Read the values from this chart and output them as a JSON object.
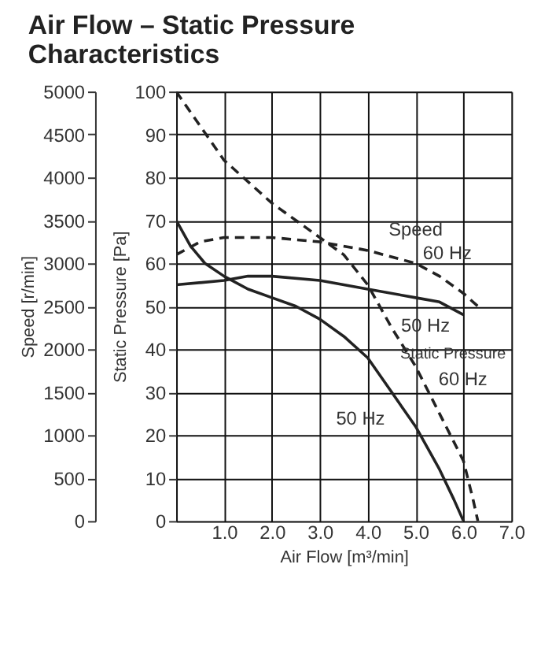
{
  "chart_data": {
    "type": "line",
    "title": "Air Flow – Static Pressure Characteristics",
    "xlabel": "Air Flow [m³/min]",
    "ylabel": "Static Pressure [Pa]",
    "y2label": "Speed [r/min]",
    "xlim": [
      0,
      7
    ],
    "xticks": [
      {
        "value": 0,
        "label": null
      },
      {
        "value": 1,
        "label": "1.0"
      },
      {
        "value": 2,
        "label": "2.0"
      },
      {
        "value": 3,
        "label": "3.0"
      },
      {
        "value": 4,
        "label": "4.0"
      },
      {
        "value": 5,
        "label": "5.0"
      },
      {
        "value": 6,
        "label": "6.0"
      },
      {
        "value": 7,
        "label": "7.0"
      }
    ],
    "ylim": [
      0,
      100
    ],
    "yticks": [
      0,
      10,
      20,
      30,
      40,
      50,
      60,
      70,
      80,
      90,
      100
    ],
    "y2lim": [
      0,
      5000
    ],
    "y2ticks": [
      0,
      500,
      1000,
      1500,
      2000,
      2500,
      3000,
      3500,
      4000,
      4500,
      5000
    ],
    "grid": true,
    "series": [
      {
        "color": "#222222",
        "line_style": "dashed",
        "axis": "y2",
        "x": [
          0,
          0.5,
          1,
          2,
          3,
          4,
          5,
          5.5,
          6,
          6.3
        ],
        "values": [
          3100,
          3250,
          3300,
          3300,
          3250,
          3150,
          3000,
          2850,
          2650,
          2500
        ]
      },
      {
        "color": "#222222",
        "line_style": "solid",
        "axis": "y2",
        "x": [
          0,
          1,
          1.5,
          2,
          3,
          4,
          5,
          5.5,
          6
        ],
        "values": [
          2750,
          2800,
          2850,
          2850,
          2800,
          2700,
          2600,
          2550,
          2400
        ]
      },
      {
        "color": "#222222",
        "line_style": "dashed",
        "x": [
          0,
          0.5,
          1,
          1.5,
          2,
          2.5,
          3,
          3.5,
          4,
          4.5,
          5,
          5.5,
          6,
          6.2,
          6.3
        ],
        "values": [
          100,
          92,
          84,
          79,
          74,
          70,
          66,
          62,
          55,
          45,
          36,
          25,
          14,
          5,
          0
        ]
      },
      {
        "color": "#222222",
        "line_style": "solid",
        "x": [
          0,
          0.3,
          0.6,
          1,
          1.5,
          2,
          2.5,
          3,
          3.5,
          4,
          4.5,
          5,
          5.5,
          5.8,
          6.0
        ],
        "values": [
          70,
          64,
          60,
          57,
          54,
          52,
          50,
          47,
          43,
          38,
          30,
          22,
          12,
          5,
          0
        ]
      }
    ],
    "annotations": [
      {
        "text": "Speed",
        "x": 5.0,
        "y": 60
      },
      {
        "text": "60 Hz",
        "x": 5.5,
        "y": 57
      },
      {
        "text": "50 Hz",
        "x": 5.5,
        "y": 51
      },
      {
        "text": "Static Pressure",
        "x": 5.0,
        "y": 36
      },
      {
        "text": "60 Hz",
        "x": 5.5,
        "y": 25
      },
      {
        "text": "50 Hz",
        "x": 4.5,
        "y": 30
      }
    ]
  }
}
